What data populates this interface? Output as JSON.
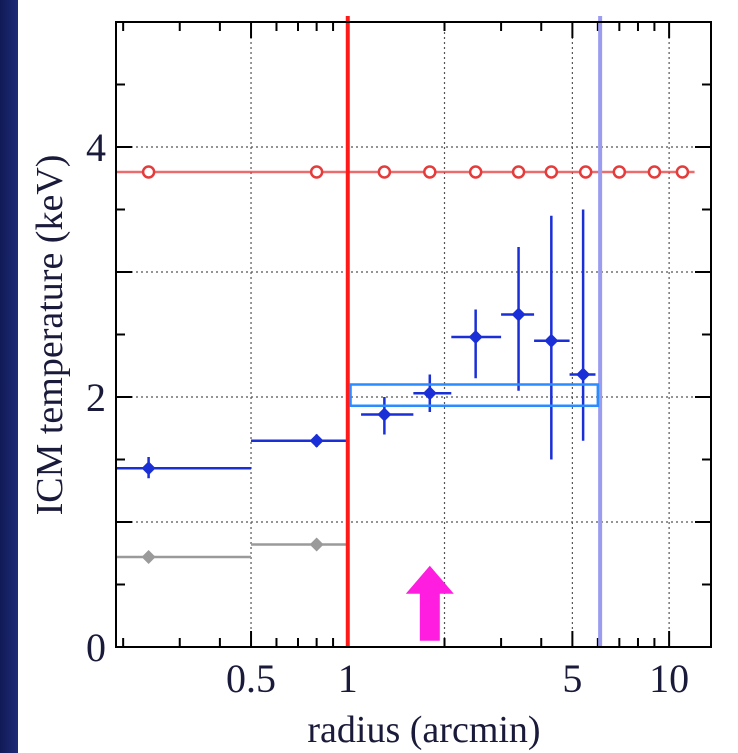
{
  "chart_data": {
    "type": "scatter",
    "xlabel": "radius (arcmin)",
    "ylabel": "ICM temperature (keV)",
    "xscale": "log",
    "xlim": [
      0.19,
      13.5
    ],
    "ylim": [
      0,
      5
    ],
    "x_ticks": [
      {
        "value": 0.5,
        "label": "0.5"
      },
      {
        "value": 1,
        "label": "1"
      },
      {
        "value": 5,
        "label": "5"
      },
      {
        "value": 10,
        "label": "10"
      }
    ],
    "y_ticks": [
      {
        "value": 0,
        "label": "0"
      },
      {
        "value": 2,
        "label": "2"
      },
      {
        "value": 4,
        "label": "4"
      }
    ],
    "grid": true,
    "colors": {
      "red_series": "#e43b3b",
      "blue_series": "#1a2fd6",
      "gray_series": "#9a9a9a",
      "red_line": "#ff1a1a",
      "light_blue_line": "#9a9cf0",
      "box": "#2a8cff",
      "arrow": "#ff1ee0"
    },
    "series": [
      {
        "color": "#e43b3b",
        "points": [
          {
            "x": 0.24,
            "y": 3.8
          },
          {
            "x": 0.8,
            "y": 3.8
          },
          {
            "x": 1.3,
            "y": 3.8
          },
          {
            "x": 1.8,
            "y": 3.8
          },
          {
            "x": 2.5,
            "y": 3.8
          },
          {
            "x": 3.4,
            "y": 3.8
          },
          {
            "x": 4.3,
            "y": 3.8
          },
          {
            "x": 5.5,
            "y": 3.8
          },
          {
            "x": 7.0,
            "y": 3.8
          },
          {
            "x": 9.0,
            "y": 3.8
          },
          {
            "x": 11.0,
            "y": 3.8
          }
        ],
        "band_x": [
          0.19,
          12.0
        ]
      },
      {
        "color": "#1a2fd6",
        "points": [
          {
            "x": 0.24,
            "x_lo": 0.19,
            "x_hi": 0.5,
            "y": 1.43,
            "y_lo": 1.35,
            "y_hi": 1.52
          },
          {
            "x": 0.8,
            "x_lo": 0.5,
            "x_hi": 1.0,
            "y": 1.65,
            "y_lo": 1.6,
            "y_hi": 1.7
          },
          {
            "x": 1.3,
            "x_lo": 1.1,
            "x_hi": 1.6,
            "y": 1.86,
            "y_lo": 1.7,
            "y_hi": 2.0
          },
          {
            "x": 1.8,
            "x_lo": 1.6,
            "x_hi": 2.1,
            "y": 2.03,
            "y_lo": 1.88,
            "y_hi": 2.18
          },
          {
            "x": 2.5,
            "x_lo": 2.1,
            "x_hi": 3.0,
            "y": 2.48,
            "y_lo": 2.15,
            "y_hi": 2.7
          },
          {
            "x": 3.4,
            "x_lo": 3.0,
            "x_hi": 3.8,
            "y": 2.66,
            "y_lo": 2.05,
            "y_hi": 3.2
          },
          {
            "x": 4.3,
            "x_lo": 3.8,
            "x_hi": 4.9,
            "y": 2.45,
            "y_lo": 1.5,
            "y_hi": 3.45
          },
          {
            "x": 5.4,
            "x_lo": 4.9,
            "x_hi": 5.9,
            "y": 2.18,
            "y_lo": 1.65,
            "y_hi": 3.5
          }
        ]
      },
      {
        "color": "#9a9a9a",
        "points": [
          {
            "x": 0.24,
            "x_lo": 0.19,
            "x_hi": 0.5,
            "y": 0.72
          },
          {
            "x": 0.8,
            "x_lo": 0.5,
            "x_hi": 1.0,
            "y": 0.82
          }
        ]
      }
    ],
    "annotations": [
      {
        "type": "vline",
        "x": 1.0,
        "color": "#ff1a1a"
      },
      {
        "type": "vline",
        "x": 6.1,
        "color": "#9a9cf0"
      },
      {
        "type": "box",
        "x0": 1.02,
        "x1": 6.0,
        "y0": 1.93,
        "y1": 2.1,
        "color": "#2a8cff"
      },
      {
        "type": "arrow",
        "x": 1.8,
        "y_tail": 0.05,
        "y_head": 0.65,
        "color": "#ff1ee0"
      }
    ]
  }
}
